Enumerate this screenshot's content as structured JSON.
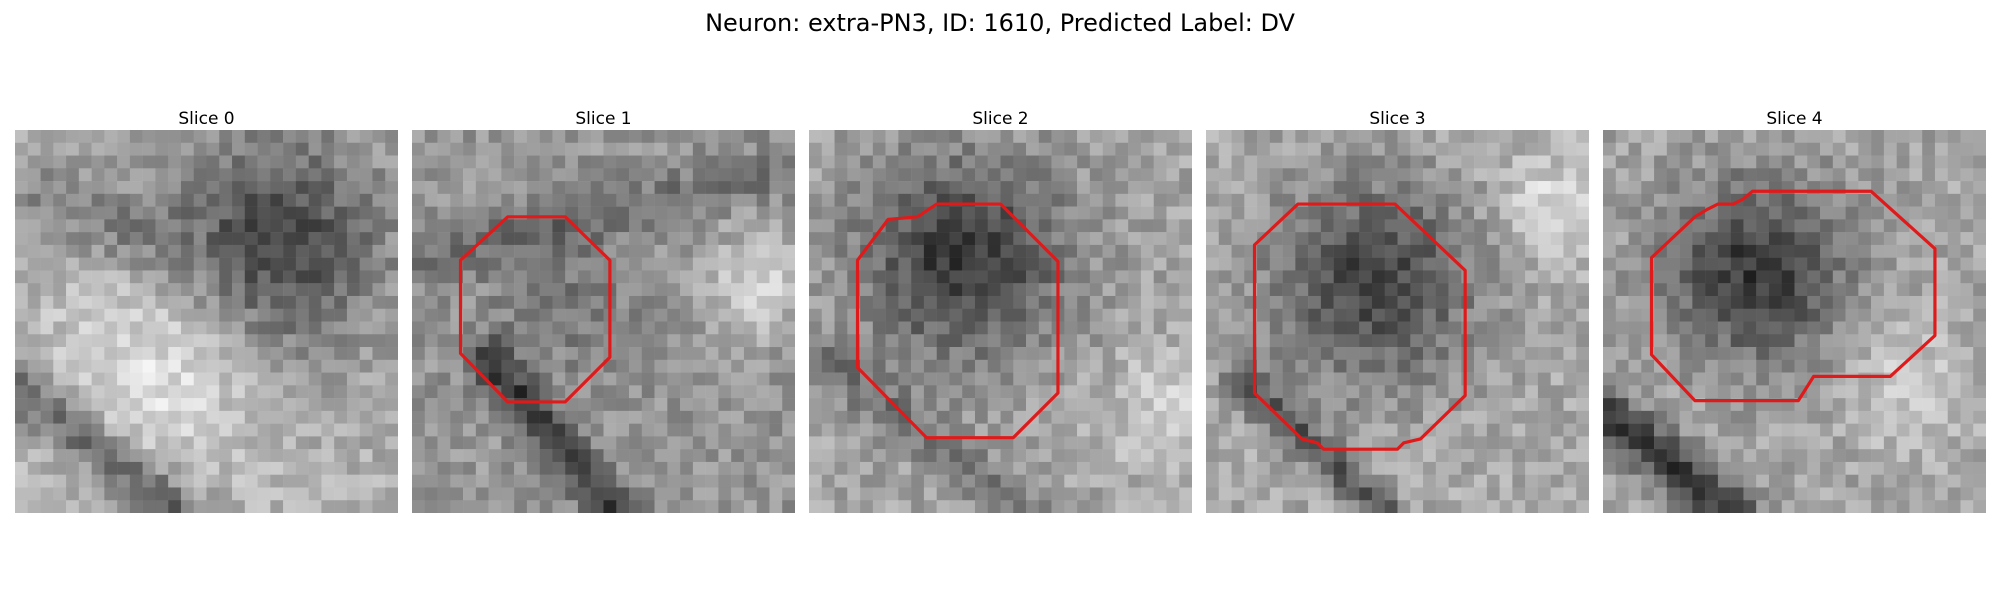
{
  "figure": {
    "title": "Neuron: extra-PN3, ID: 1610, Predicted Label: DV"
  },
  "panels": [
    {
      "title": "Slice 0",
      "has_outline": false,
      "pattern": "dark band upper-right, bright patch lower-center, dark diagonal streaks lower-left"
    },
    {
      "title": "Slice 1",
      "has_outline": true,
      "pattern": "textured gray field with mid-gray cell body, dark diagonal band lower-left"
    },
    {
      "title": "Slice 2",
      "has_outline": true,
      "pattern": "large dark round cell body upper-center"
    },
    {
      "title": "Slice 3",
      "has_outline": true,
      "pattern": "large dark round cell body center"
    },
    {
      "title": "Slice 4",
      "has_outline": true,
      "pattern": "dark speckled cell body center, dark streak lower-left"
    }
  ],
  "colors": {
    "outline": "#e01a1a",
    "background": "#ffffff"
  }
}
